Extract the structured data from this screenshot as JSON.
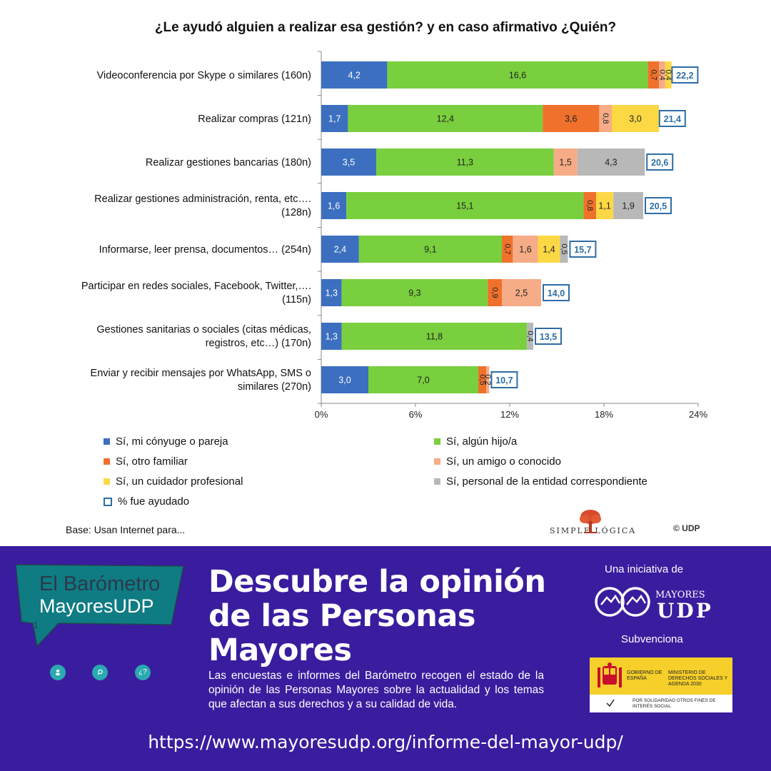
{
  "chart_data": {
    "type": "bar",
    "orientation": "horizontal",
    "stacked": true,
    "title": "¿Le ayudó alguien a realizar esa gestión? y en caso afirmativo ¿Quién?",
    "categories": [
      [
        "Videoconferencia por Skype o similares (160n)"
      ],
      [
        "Realizar compras (121n)"
      ],
      [
        "Realizar gestiones bancarias (180n)"
      ],
      [
        "Realizar gestiones administración, renta, etc….",
        "(128n)"
      ],
      [
        "Informarse, leer prensa, documentos… (254n)"
      ],
      [
        "Participar en redes sociales, Facebook, Twitter,….",
        "(115n)"
      ],
      [
        "Gestiones sanitarias o sociales (citas médicas,",
        "registros, etc…) (170n)"
      ],
      [
        "Enviar y recibir mensajes por WhatsApp, SMS o",
        "similares (270n)"
      ]
    ],
    "series": [
      {
        "name": "Sí, mi cónyuge o pareja",
        "color": "#3c6fc0",
        "values": [
          4.2,
          1.7,
          3.5,
          1.6,
          2.4,
          1.3,
          1.3,
          3.0
        ],
        "labels": [
          "4,2",
          "1,7",
          "3,5",
          "1,6",
          "2,4",
          "1,3",
          "1,3",
          "3,0"
        ]
      },
      {
        "name": "Sí, algún hijo/a",
        "color": "#79cf3d",
        "values": [
          16.6,
          12.4,
          11.3,
          15.1,
          9.1,
          9.3,
          11.8,
          7.0
        ],
        "labels": [
          "16,6",
          "12,4",
          "11,3",
          "15,1",
          "9,1",
          "9,3",
          "11,8",
          "7,0"
        ]
      },
      {
        "name": "Sí, otro familiar",
        "color": "#f0712c",
        "values": [
          0.7,
          3.6,
          0,
          0.8,
          0.7,
          0.9,
          0,
          0.5
        ],
        "labels": [
          "0,7",
          "3,6",
          "",
          "0,8",
          "0,7",
          "0,9",
          "",
          "0,5"
        ]
      },
      {
        "name": "Sí, un amigo o conocido",
        "color": "#f6ac86",
        "values": [
          0.4,
          0.8,
          1.5,
          0,
          1.6,
          2.5,
          0,
          0.2
        ],
        "labels": [
          "0,4",
          "0,8",
          "1,5",
          "",
          "1,6",
          "2,5",
          "",
          "0,2"
        ]
      },
      {
        "name": "Sí, un cuidador profesional",
        "color": "#fcd845",
        "values": [
          0.4,
          3.0,
          0,
          1.1,
          1.4,
          0,
          0,
          0
        ],
        "labels": [
          "0,4",
          "3,0",
          "",
          "1,1",
          "1,4",
          "",
          "",
          ""
        ]
      },
      {
        "name": "Sí, personal de la entidad correspondiente",
        "color": "#b8b8b8",
        "values": [
          0,
          0,
          4.3,
          1.9,
          0.5,
          0,
          0.4,
          0
        ],
        "labels": [
          "",
          "",
          "4,3",
          "1,9",
          "0,5",
          "",
          "0,4",
          ""
        ]
      }
    ],
    "totals": {
      "name": "% fue ayudado",
      "color": "#2e6da4",
      "values": [
        22.2,
        21.4,
        20.6,
        20.5,
        15.7,
        14.0,
        13.5,
        10.7
      ],
      "labels": [
        "22,2",
        "21,4",
        "20,6",
        "20,5",
        "15,7",
        "14,0",
        "13,5",
        "10,7"
      ]
    },
    "xlim": [
      0,
      24
    ],
    "xticks": [
      0,
      6,
      12,
      18,
      24
    ],
    "xtick_labels": [
      "0%",
      "6%",
      "12%",
      "18%",
      "24%"
    ],
    "legend_position": "bottom",
    "grid": false
  },
  "legend": {
    "items": [
      {
        "label": "Sí, mi cónyuge o pareja",
        "color": "#3c6fc0"
      },
      {
        "label": "Sí, algún hijo/a",
        "color": "#79cf3d"
      },
      {
        "label": "Sí, otro familiar",
        "color": "#f0712c"
      },
      {
        "label": "Sí, un amigo o conocido",
        "color": "#f6ac86"
      },
      {
        "label": "Sí, un cuidador profesional",
        "color": "#fcd845"
      },
      {
        "label": "Sí, personal de la entidad correspondiente",
        "color": "#b8b8b8"
      },
      {
        "label": "% fue ayudado",
        "color": "#2e6da4"
      }
    ]
  },
  "footnote": "Base: Usan Internet para...",
  "source_logo": "SIMPLE LÓGICA",
  "copyright": "© UDP",
  "banner": {
    "background": "#3a1c9e",
    "logo_line1": "El Barómetro",
    "logo_line2": "MayoresUDP",
    "logo_marker": "1",
    "icons": [
      "person-icon",
      "search-icon",
      "question-icon"
    ],
    "icon_question_text": "¿?",
    "headline": "Descubre la opinión de las Personas Mayores",
    "description": "Las encuestas e informes del Barómetro recogen el estado de la opinión de las Personas Mayores sobre la actualidad y los temas que afectan a sus derechos y a su calidad de vida.",
    "url": "https://www.mayoresudp.org/informe-del-mayor-udp/",
    "initiative_label": "Una iniciativa de",
    "partner_logo_top": "MAYORES",
    "partner_logo_bottom": "UDP",
    "subsidy_label": "Subvenciona",
    "gov_left": "GOBIERNO DE ESPAÑA",
    "gov_right": "MINISTERIO DE DERECHOS SOCIALES Y AGENDA 2030",
    "gov_bottom": "POR SOLIDARIDAD OTROS FINES DE INTERÉS SOCIAL"
  }
}
